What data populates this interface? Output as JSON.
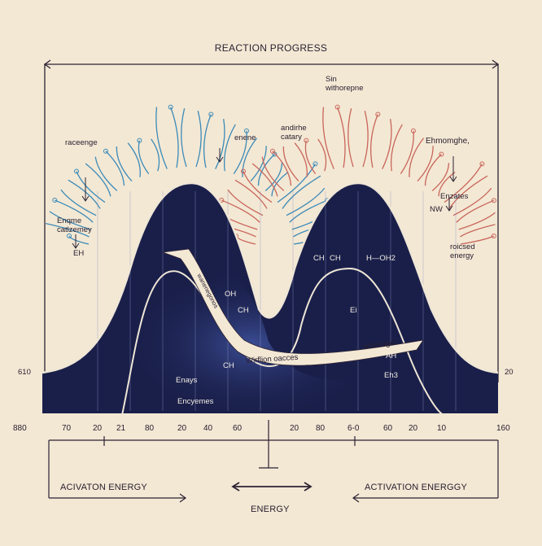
{
  "title": "REACTION PROGRESS",
  "left_labels": [
    "raceenge",
    "Enqme\ncatlzemey",
    "EH"
  ],
  "mid_labels": [
    "enene",
    "andirhe\ncatary"
  ],
  "top_right": "Sin\nwithorepne",
  "right_labels": [
    "Ehmomghe,",
    "Enzates",
    "roicsed\nenergy",
    "NW"
  ],
  "inner_labels": [
    "CH",
    "CH",
    "H—OH2",
    "CH",
    "OH",
    "Ei",
    "CH",
    "Eh3",
    "AH"
  ],
  "bottom_labels": [
    "Enays",
    "Encyemes"
  ],
  "band_labels": [
    "Wirflion oacces",
    "wuenoger",
    "wanenegonos"
  ],
  "edge_left": "610",
  "edge_right": "20",
  "axis_ticks": [
    "880",
    "70",
    "20",
    "21",
    "80",
    "20",
    "40",
    "60",
    "20",
    "80",
    "6-0",
    "60",
    "20",
    "10",
    "160"
  ],
  "footer": {
    "left": "ACIVATON ENERGY",
    "right": "ACTIVATION ENERGGY",
    "center": "ENERGY"
  },
  "colors": {
    "background": "#f3e8d4",
    "well": "#1a1f4a",
    "left_hair": "#3b8ab8",
    "right_hair": "#c9655a",
    "ink": "#2b2233"
  }
}
